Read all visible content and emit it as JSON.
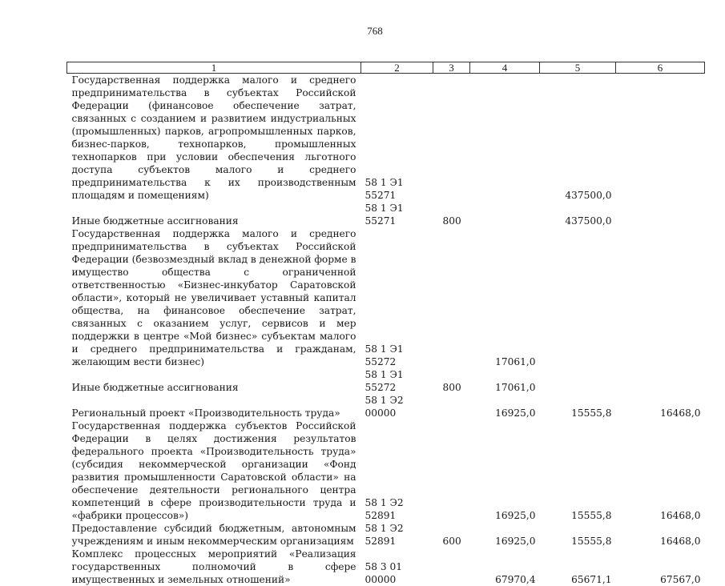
{
  "page_number": "768",
  "table": {
    "headers": [
      "1",
      "2",
      "3",
      "4",
      "5",
      "6"
    ],
    "rows": [
      {
        "name": "Государственная поддержка малого и среднего предпринимательства в субъектах Российской Федерации (финансовое обеспечение затрат, связанных с созданием и развитием индустриальных (промышленных) парков, агропромышленных парков, бизнес-парков, технопарков, промышленных технопарков при условии обеспечения льготного доступа субъектов малого и среднего предпринимательства к их производственным площадям и помещениям)",
        "code": "58 1 Э1 55271",
        "type": "",
        "v4": "",
        "v5": "437500,0",
        "v6": ""
      },
      {
        "name": "Иные бюджетные ассигнования",
        "code": "58 1 Э1 55271",
        "type": "800",
        "v4": "",
        "v5": "437500,0",
        "v6": ""
      },
      {
        "name": "Государственная поддержка малого и среднего предпринимательства в субъектах Российской Федерации (безвозмездный вклад в денежной форме в имущество общества с ограниченной ответственностью «Бизнес-инкубатор Саратовской области», который не увеличивает уставный капитал общества, на финансовое обеспечение затрат, связанных с оказанием услуг, сервисов и мер поддержки в центре «Мой бизнес» субъектам малого и среднего предпринимательства и гражданам, желающим вести бизнес)",
        "code": "58 1 Э1 55272",
        "type": "",
        "v4": "17061,0",
        "v5": "",
        "v6": ""
      },
      {
        "name": "Иные бюджетные ассигнования",
        "code": "58 1 Э1 55272",
        "type": "800",
        "v4": "17061,0",
        "v5": "",
        "v6": ""
      },
      {
        "name": "Региональный проект «Производительность труда»",
        "code": "58 1 Э2 00000",
        "type": "",
        "v4": "16925,0",
        "v5": "15555,8",
        "v6": "16468,0"
      },
      {
        "name": "Государственная поддержка субъектов Российской Федерации в целях достижения результатов федерального проекта «Производительность труда» (субсидия некоммерческой организации «Фонд развития промышленности Саратовской области» на обеспечение деятельности регионального центра компетенций в сфере производительности труда и «фабрики процессов»)",
        "code": "58 1 Э2 52891",
        "type": "",
        "v4": "16925,0",
        "v5": "15555,8",
        "v6": "16468,0"
      },
      {
        "name": "Предоставление субсидий бюджетным, автономным учреждениям и иным некоммерческим организациям",
        "code": "58 1 Э2 52891",
        "type": "600",
        "v4": "16925,0",
        "v5": "15555,8",
        "v6": "16468,0"
      },
      {
        "name": "Комплекс процессных мероприятий «Реализация государственных полномочий в сфере имущественных и земельных отношений»",
        "code": "58 3 01 00000",
        "type": "",
        "v4": "67970,4",
        "v5": "65671,1",
        "v6": "67567,0"
      }
    ]
  }
}
